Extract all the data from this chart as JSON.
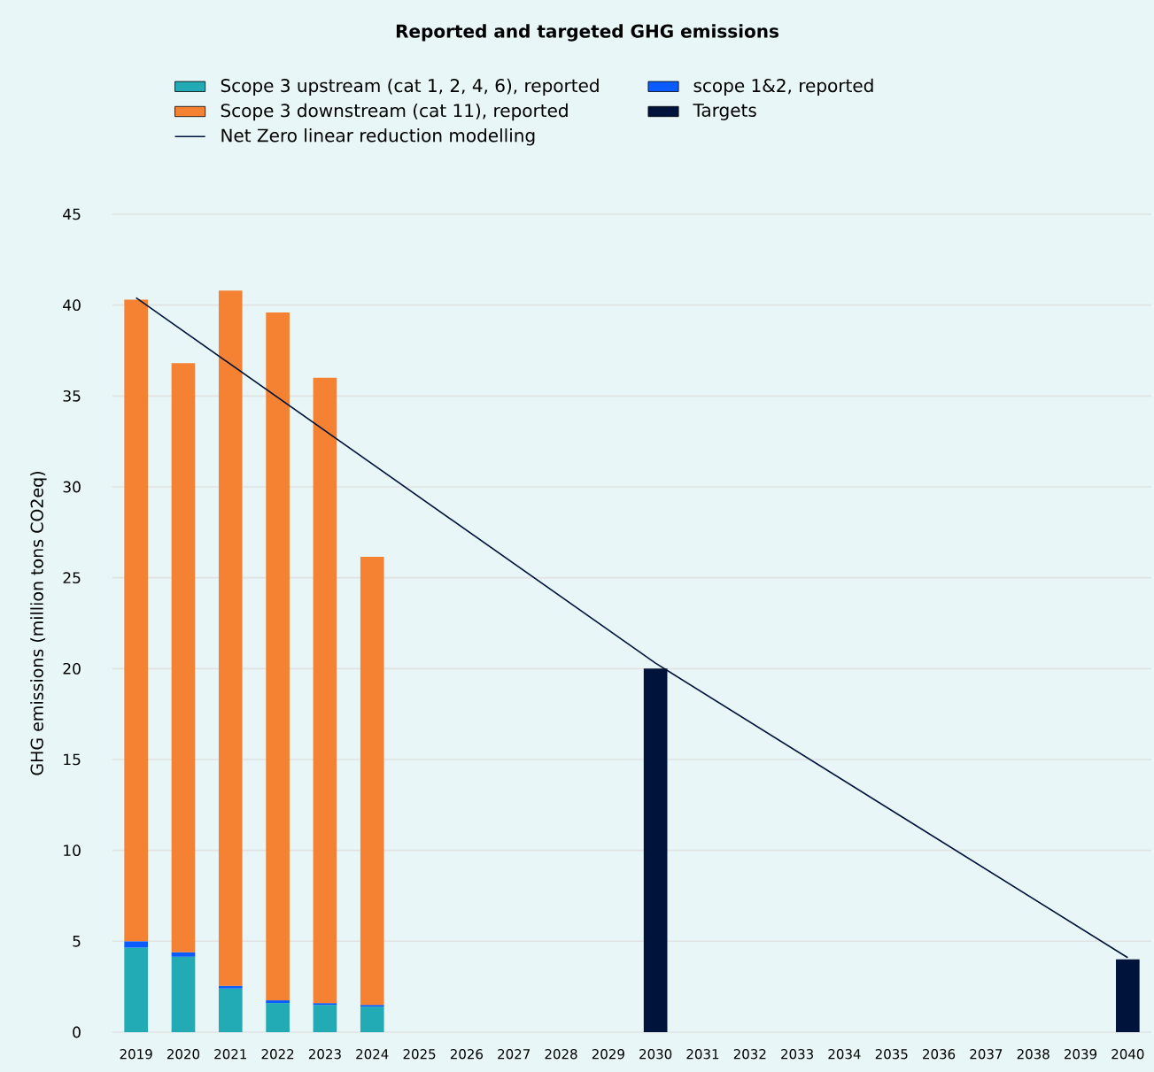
{
  "chart_data": {
    "type": "bar",
    "title": "Reported and targeted GHG emissions",
    "ylabel": "GHG emissions (million tons CO2eq)",
    "categories": [
      "2019",
      "2020",
      "2021",
      "2022",
      "2023",
      "2024",
      "2025",
      "2026",
      "2027",
      "2028",
      "2029",
      "2030",
      "2031",
      "2032",
      "2033",
      "2034",
      "2035",
      "2036",
      "2037",
      "2038",
      "2039",
      "2040"
    ],
    "stacked": true,
    "grid": "y",
    "legend": "top",
    "ylim": [
      0,
      45
    ],
    "yticks": [
      0,
      5,
      10,
      15,
      20,
      25,
      30,
      35,
      40,
      45
    ],
    "series": [
      {
        "name": "Scope 3 upstream (cat 1, 2, 4, 6), reported",
        "color": "#22aab5",
        "values": [
          4.65,
          4.15,
          2.4,
          1.6,
          1.5,
          1.4,
          null,
          null,
          null,
          null,
          null,
          null,
          null,
          null,
          null,
          null,
          null,
          null,
          null,
          null,
          null,
          null
        ]
      },
      {
        "name": "scope 1&2, reported",
        "color": "#0a5cff",
        "values": [
          0.35,
          0.25,
          0.15,
          0.15,
          0.1,
          0.1,
          null,
          null,
          null,
          null,
          null,
          null,
          null,
          null,
          null,
          null,
          null,
          null,
          null,
          null,
          null,
          null
        ]
      },
      {
        "name": "Scope 3 downstream (cat 11), reported",
        "color": "#f58233",
        "values": [
          35.3,
          32.4,
          38.25,
          37.85,
          34.4,
          24.65,
          null,
          null,
          null,
          null,
          null,
          null,
          null,
          null,
          null,
          null,
          null,
          null,
          null,
          null,
          null,
          null
        ]
      },
      {
        "name": "Targets",
        "color": "#00133a",
        "values": [
          null,
          null,
          null,
          null,
          null,
          null,
          null,
          null,
          null,
          null,
          null,
          20,
          null,
          null,
          null,
          null,
          null,
          null,
          null,
          null,
          null,
          4
        ]
      },
      {
        "name": "Net Zero linear reduction modelling",
        "type": "line",
        "color": "#00133a",
        "values": [
          40.4,
          null,
          null,
          null,
          null,
          null,
          null,
          null,
          null,
          null,
          null,
          20.3,
          null,
          null,
          null,
          null,
          null,
          null,
          null,
          null,
          null,
          4.1
        ]
      }
    ]
  }
}
